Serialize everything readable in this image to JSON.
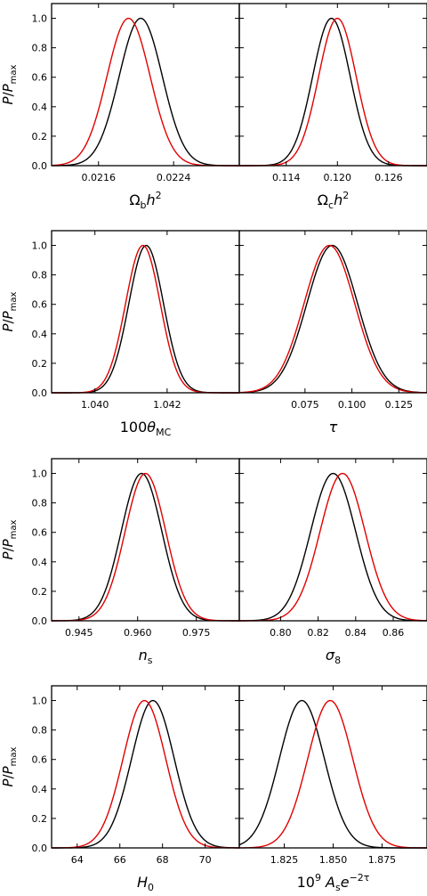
{
  "figure": {
    "ylabel": {
      "base": "P",
      "sep": "/",
      "base2": "P",
      "sub": "max"
    },
    "yticks": [
      "0.0",
      "0.2",
      "0.4",
      "0.6",
      "0.8",
      "1.0"
    ],
    "series_colors": {
      "black": "#000000",
      "red": "#e00000"
    }
  },
  "chart_data": [
    {
      "type": "line",
      "panel": "omega_b_h2",
      "xlabel_parts": [
        [
          "Ω",
          ""
        ],
        [
          "b",
          "sub"
        ],
        [
          "h",
          "it"
        ],
        [
          "2",
          "sup"
        ]
      ],
      "xlim": [
        0.0211,
        0.0231
      ],
      "ylim": [
        0,
        1.1
      ],
      "xticks": [
        0.0216,
        0.0224
      ],
      "xtick_labels": [
        "0.0216",
        "0.0224"
      ],
      "yticks": [
        0.0,
        0.2,
        0.4,
        0.6,
        0.8,
        1.0
      ],
      "grid": false,
      "series": [
        {
          "color": "#000000",
          "mean": 0.02205,
          "sigma": 0.00023
        },
        {
          "color": "#e00000",
          "mean": 0.02192,
          "sigma": 0.00023
        }
      ]
    },
    {
      "type": "line",
      "panel": "omega_c_h2",
      "xlabel_parts": [
        [
          "Ω",
          ""
        ],
        [
          "c",
          "sub"
        ],
        [
          "h",
          "it"
        ],
        [
          "2",
          "sup"
        ]
      ],
      "xlim": [
        0.1085,
        0.1305
      ],
      "ylim": [
        0,
        1.1
      ],
      "xticks": [
        0.114,
        0.12,
        0.126
      ],
      "xtick_labels": [
        "0.114",
        "0.120",
        "0.126"
      ],
      "yticks": [
        0.0,
        0.2,
        0.4,
        0.6,
        0.8,
        1.0
      ],
      "grid": false,
      "series": [
        {
          "color": "#000000",
          "mean": 0.1193,
          "sigma": 0.0022
        },
        {
          "color": "#e00000",
          "mean": 0.12,
          "sigma": 0.0022
        }
      ]
    },
    {
      "type": "line",
      "panel": "theta_mc",
      "xlabel_parts": [
        [
          "100",
          ""
        ],
        [
          "θ",
          "it"
        ],
        [
          "MC",
          "sub"
        ]
      ],
      "xlim": [
        1.0388,
        1.044
      ],
      "ylim": [
        0,
        1.1
      ],
      "xticks": [
        1.04,
        1.042
      ],
      "xtick_labels": [
        "1.040",
        "1.042"
      ],
      "yticks": [
        0.0,
        0.2,
        0.4,
        0.6,
        0.8,
        1.0
      ],
      "grid": false,
      "series": [
        {
          "color": "#000000",
          "mean": 1.04142,
          "sigma": 0.00048
        },
        {
          "color": "#e00000",
          "mean": 1.04133,
          "sigma": 0.00048
        }
      ]
    },
    {
      "type": "line",
      "panel": "tau",
      "xlabel_parts": [
        [
          "τ",
          "it"
        ]
      ],
      "xlim": [
        0.04,
        0.14
      ],
      "ylim": [
        0,
        1.1
      ],
      "xticks": [
        0.075,
        0.1,
        0.125
      ],
      "xtick_labels": [
        "0.075",
        "0.100",
        "0.125"
      ],
      "yticks": [
        0.0,
        0.2,
        0.4,
        0.6,
        0.8,
        1.0
      ],
      "grid": false,
      "series": [
        {
          "color": "#000000",
          "mean": 0.0895,
          "sigma": 0.0135
        },
        {
          "color": "#e00000",
          "mean": 0.088,
          "sigma": 0.0135
        }
      ]
    },
    {
      "type": "line",
      "panel": "n_s",
      "xlabel_parts": [
        [
          "n",
          "it"
        ],
        [
          "s",
          "sub"
        ]
      ],
      "xlim": [
        0.938,
        0.986
      ],
      "ylim": [
        0,
        1.1
      ],
      "xticks": [
        0.945,
        0.96,
        0.975
      ],
      "xtick_labels": [
        "0.945",
        "0.960",
        "0.975"
      ],
      "yticks": [
        0.0,
        0.2,
        0.4,
        0.6,
        0.8,
        1.0
      ],
      "grid": false,
      "series": [
        {
          "color": "#000000",
          "mean": 0.961,
          "sigma": 0.0052
        },
        {
          "color": "#e00000",
          "mean": 0.962,
          "sigma": 0.0052
        }
      ]
    },
    {
      "type": "line",
      "panel": "sigma_8",
      "xlabel_parts": [
        [
          "σ",
          "it"
        ],
        [
          "8",
          "sub"
        ]
      ],
      "xlim": [
        0.778,
        0.878
      ],
      "ylim": [
        0,
        1.1
      ],
      "xticks": [
        0.8,
        0.82,
        0.84,
        0.86
      ],
      "xtick_labels": [
        "0.80",
        "0.82",
        "0.84",
        "0.86"
      ],
      "yticks": [
        0.0,
        0.2,
        0.4,
        0.6,
        0.8,
        1.0
      ],
      "grid": false,
      "series": [
        {
          "color": "#000000",
          "mean": 0.828,
          "sigma": 0.012
        },
        {
          "color": "#e00000",
          "mean": 0.833,
          "sigma": 0.012
        }
      ]
    },
    {
      "type": "line",
      "panel": "H_0",
      "xlabel_parts": [
        [
          "H",
          "it"
        ],
        [
          "0",
          "sub"
        ]
      ],
      "xlim": [
        62.8,
        71.6
      ],
      "ylim": [
        0,
        1.1
      ],
      "xticks": [
        64,
        66,
        68,
        70
      ],
      "xtick_labels": [
        "64",
        "66",
        "68",
        "70"
      ],
      "yticks": [
        0.0,
        0.2,
        0.4,
        0.6,
        0.8,
        1.0
      ],
      "grid": false,
      "series": [
        {
          "color": "#000000",
          "mean": 67.55,
          "sigma": 1.0
        },
        {
          "color": "#e00000",
          "mean": 67.15,
          "sigma": 1.0
        }
      ]
    },
    {
      "type": "line",
      "panel": "As_e2tau",
      "xlabel_parts": [
        [
          "10",
          ""
        ],
        [
          "9",
          "sup"
        ],
        [
          " A",
          "it"
        ],
        [
          "s",
          "sub"
        ],
        [
          "e",
          "it"
        ],
        [
          "−2τ",
          "sup"
        ]
      ],
      "xlim": [
        1.802,
        1.898
      ],
      "ylim": [
        0,
        1.1
      ],
      "xticks": [
        1.825,
        1.85,
        1.875
      ],
      "xtick_labels": [
        "1.825",
        "1.850",
        "1.875"
      ],
      "yticks": [
        0.0,
        0.2,
        0.4,
        0.6,
        0.8,
        1.0
      ],
      "grid": false,
      "series": [
        {
          "color": "#000000",
          "mean": 1.834,
          "sigma": 0.0115
        },
        {
          "color": "#e00000",
          "mean": 1.8485,
          "sigma": 0.0115
        }
      ]
    }
  ]
}
